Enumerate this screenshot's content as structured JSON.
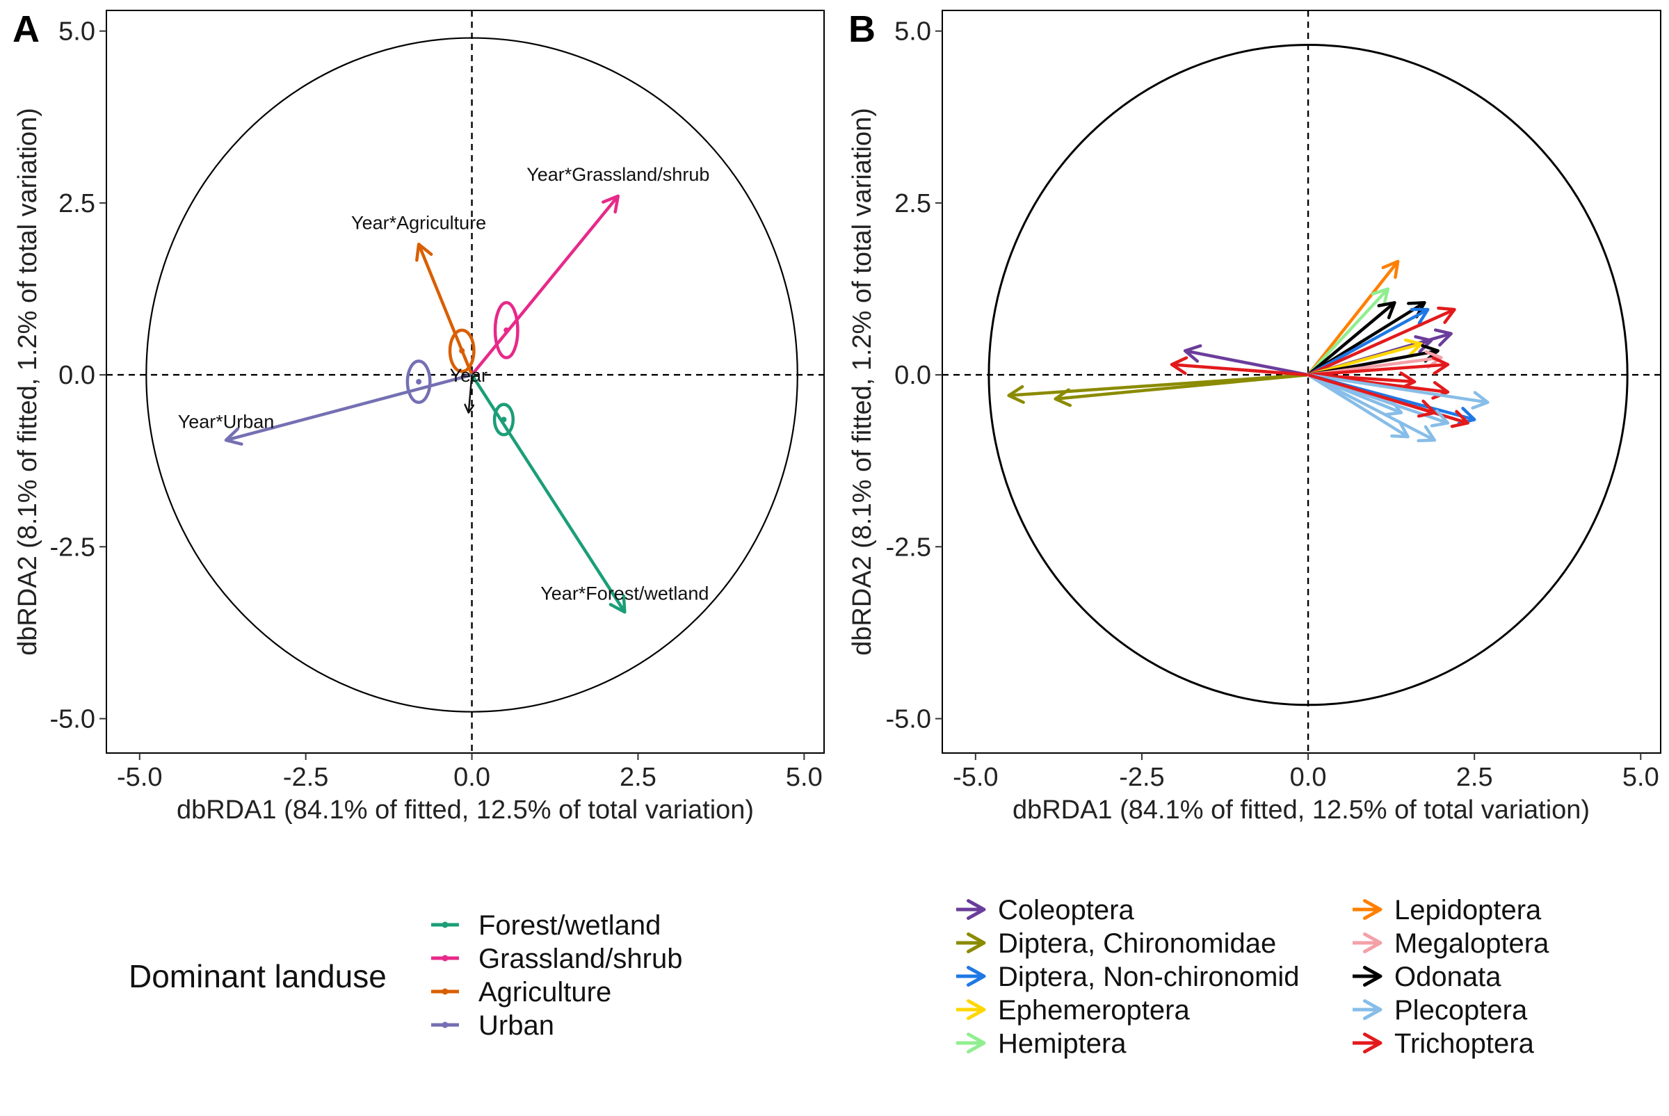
{
  "chart_data": [
    {
      "type": "scatter",
      "panel": "A",
      "xlabel": "dbRDA1 (84.1% of fitted, 12.5% of total variation)",
      "ylabel": "dbRDA2 (8.1% of fitted, 1.2% of total variation)",
      "xlim": [
        -5.5,
        5.3
      ],
      "ylim": [
        -5.5,
        5.3
      ],
      "xticks": [
        "-5.0",
        "-2.5",
        "0.0",
        "2.5",
        "5.0"
      ],
      "yticks": [
        "-5.0",
        "-2.5",
        "0.0",
        "2.5",
        "5.0"
      ],
      "grid": false,
      "circle_radius": 4.9,
      "reference_lines": "dashed at x=0 and y=0",
      "vectors": [
        {
          "label": "Year*Grassland/shrub",
          "x": 2.2,
          "y": 2.6,
          "color": "#e7298a"
        },
        {
          "label": "Year*Agriculture",
          "x": -0.8,
          "y": 1.9,
          "color": "#d95f02"
        },
        {
          "label": "Year*Urban",
          "x": -3.7,
          "y": -0.95,
          "color": "#7570b3"
        },
        {
          "label": "Year*Forest/wetland",
          "x": 2.3,
          "y": -3.45,
          "color": "#1b9e77"
        },
        {
          "label": "Year",
          "x": -0.05,
          "y": -0.55,
          "color": "#111111"
        }
      ],
      "ellipses": [
        {
          "group": "Grassland/shrub",
          "cx": 0.52,
          "cy": 0.65,
          "rx": 0.17,
          "ry": 0.4,
          "color": "#e7298a"
        },
        {
          "group": "Agriculture",
          "cx": -0.15,
          "cy": 0.35,
          "rx": 0.18,
          "ry": 0.3,
          "color": "#d95f02"
        },
        {
          "group": "Urban",
          "cx": -0.8,
          "cy": -0.1,
          "rx": 0.17,
          "ry": 0.3,
          "color": "#7570b3"
        },
        {
          "group": "Forest/wetland",
          "cx": 0.48,
          "cy": -0.65,
          "rx": 0.14,
          "ry": 0.22,
          "color": "#1b9e77"
        }
      ],
      "legend": {
        "title": "Dominant landuse",
        "entries": [
          {
            "name": "Forest/wetland",
            "color": "#1b9e77"
          },
          {
            "name": "Grassland/shrub",
            "color": "#e7298a"
          },
          {
            "name": "Agriculture",
            "color": "#d95f02"
          },
          {
            "name": "Urban",
            "color": "#7570b3"
          }
        ]
      }
    },
    {
      "type": "scatter",
      "panel": "B",
      "xlabel": "dbRDA1 (84.1% of fitted, 12.5% of total variation)",
      "ylabel": "dbRDA2 (8.1% of fitted, 1.2% of total variation)",
      "xlim": [
        -5.5,
        5.3
      ],
      "ylim": [
        -5.5,
        5.3
      ],
      "xticks": [
        "-5.0",
        "-2.5",
        "0.0",
        "2.5",
        "5.0"
      ],
      "yticks": [
        "-5.0",
        "-2.5",
        "0.0",
        "2.5",
        "5.0"
      ],
      "grid": false,
      "circle_radius": 4.8,
      "reference_lines": "dashed at x=0 and y=0",
      "vectors": [
        {
          "group": "Diptera, Chironomidae",
          "x": -4.5,
          "y": -0.3
        },
        {
          "group": "Diptera, Chironomidae",
          "x": -3.8,
          "y": -0.35
        },
        {
          "group": "Coleoptera",
          "x": -1.85,
          "y": 0.35
        },
        {
          "group": "Trichoptera",
          "x": -2.05,
          "y": 0.15
        },
        {
          "group": "Lepidoptera",
          "x": 1.35,
          "y": 1.65
        },
        {
          "group": "Hemiptera",
          "x": 1.2,
          "y": 1.25
        },
        {
          "group": "Odonata",
          "x": 1.3,
          "y": 1.05
        },
        {
          "group": "Odonata",
          "x": 1.75,
          "y": 1.05
        },
        {
          "group": "Diptera, Non-chironomid",
          "x": 1.8,
          "y": 0.95
        },
        {
          "group": "Trichoptera",
          "x": 2.2,
          "y": 0.95
        },
        {
          "group": "Coleoptera",
          "x": 2.15,
          "y": 0.6
        },
        {
          "group": "Coleoptera",
          "x": 1.85,
          "y": 0.5
        },
        {
          "group": "Ephemeroptera",
          "x": 1.7,
          "y": 0.45
        },
        {
          "group": "Odonata",
          "x": 1.95,
          "y": 0.35
        },
        {
          "group": "Megaloptera",
          "x": 2.0,
          "y": 0.25
        },
        {
          "group": "Trichoptera",
          "x": 2.1,
          "y": 0.15
        },
        {
          "group": "Trichoptera",
          "x": 1.6,
          "y": -0.1
        },
        {
          "group": "Trichoptera",
          "x": 2.1,
          "y": -0.25
        },
        {
          "group": "Plecoptera",
          "x": 2.7,
          "y": -0.4
        },
        {
          "group": "Diptera, Non-chironomid",
          "x": 2.5,
          "y": -0.65
        },
        {
          "group": "Trichoptera",
          "x": 2.4,
          "y": -0.7
        },
        {
          "group": "Plecoptera",
          "x": 2.1,
          "y": -0.7
        },
        {
          "group": "Plecoptera",
          "x": 1.5,
          "y": -0.9
        },
        {
          "group": "Plecoptera",
          "x": 1.9,
          "y": -0.95
        },
        {
          "group": "Plecoptera",
          "x": 1.4,
          "y": -0.55
        },
        {
          "group": "Trichoptera",
          "x": 1.9,
          "y": -0.55
        }
      ],
      "legend": {
        "entries": [
          {
            "name": "Coleoptera",
            "color": "#6a3d9a"
          },
          {
            "name": "Diptera, Chironomidae",
            "color": "#8b8b00"
          },
          {
            "name": "Diptera, Non-chironomid",
            "color": "#1f78e4"
          },
          {
            "name": "Ephemeroptera",
            "color": "#ffd700"
          },
          {
            "name": "Hemiptera",
            "color": "#90ee90"
          },
          {
            "name": "Lepidoptera",
            "color": "#ff7f00"
          },
          {
            "name": "Megaloptera",
            "color": "#f4a0a8"
          },
          {
            "name": "Odonata",
            "color": "#000000"
          },
          {
            "name": "Plecoptera",
            "color": "#87bde8"
          },
          {
            "name": "Trichoptera",
            "color": "#e31a1c"
          }
        ]
      }
    }
  ]
}
